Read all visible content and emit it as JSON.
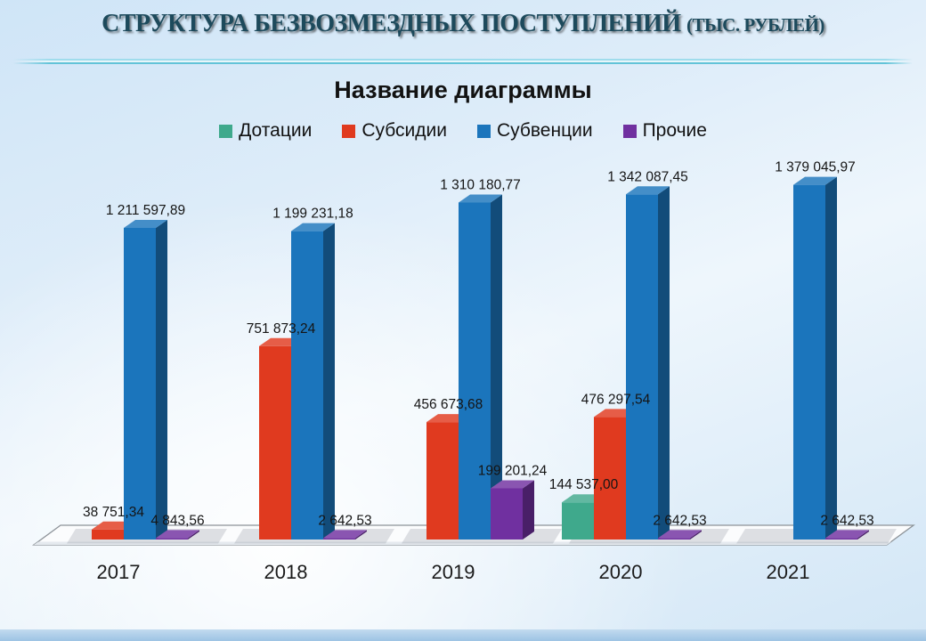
{
  "header": {
    "title": "СТРУКТУРА БЕЗВОЗМЕЗДНЫХ ПОСТУПЛЕНИЙ",
    "title_suffix": "(ТЫС. РУБЛЕЙ)"
  },
  "chart_data": {
    "type": "bar",
    "style": "3d-clustered",
    "title": "Название диаграммы",
    "categories": [
      "2017",
      "2018",
      "2019",
      "2020",
      "2021"
    ],
    "series": [
      {
        "name": "Дотации",
        "color": "#3FA98C",
        "values": [
          null,
          null,
          null,
          144537.0,
          null
        ],
        "labels": [
          "",
          "",
          "",
          "144 537,00",
          ""
        ]
      },
      {
        "name": "Субсидии",
        "color": "#E03A1F",
        "values": [
          38751.34,
          751873.24,
          456673.68,
          476297.54,
          null
        ],
        "labels": [
          "38 751,34",
          "751 873,24",
          "456 673,68",
          "476 297,54",
          ""
        ]
      },
      {
        "name": "Субвенции",
        "color": "#1B75BC",
        "values": [
          1211597.89,
          1199231.18,
          1310180.77,
          1342087.45,
          1379045.97
        ],
        "labels": [
          "1 211 597,89",
          "1 199 231,18",
          "1 310 180,77",
          "1 342 087,45",
          "1 379 045,97"
        ]
      },
      {
        "name": "Прочие",
        "color": "#7030A0",
        "values": [
          4843.56,
          2642.53,
          199201.24,
          2642.53,
          2642.53
        ],
        "labels": [
          "4 843,56",
          "2 642,53",
          "199 201,24",
          "2 642,53",
          "2 642,53"
        ]
      }
    ],
    "legend_position": "top",
    "value_axis_visible": false,
    "gridlines": false,
    "floor_color": "#FBFCFD"
  }
}
